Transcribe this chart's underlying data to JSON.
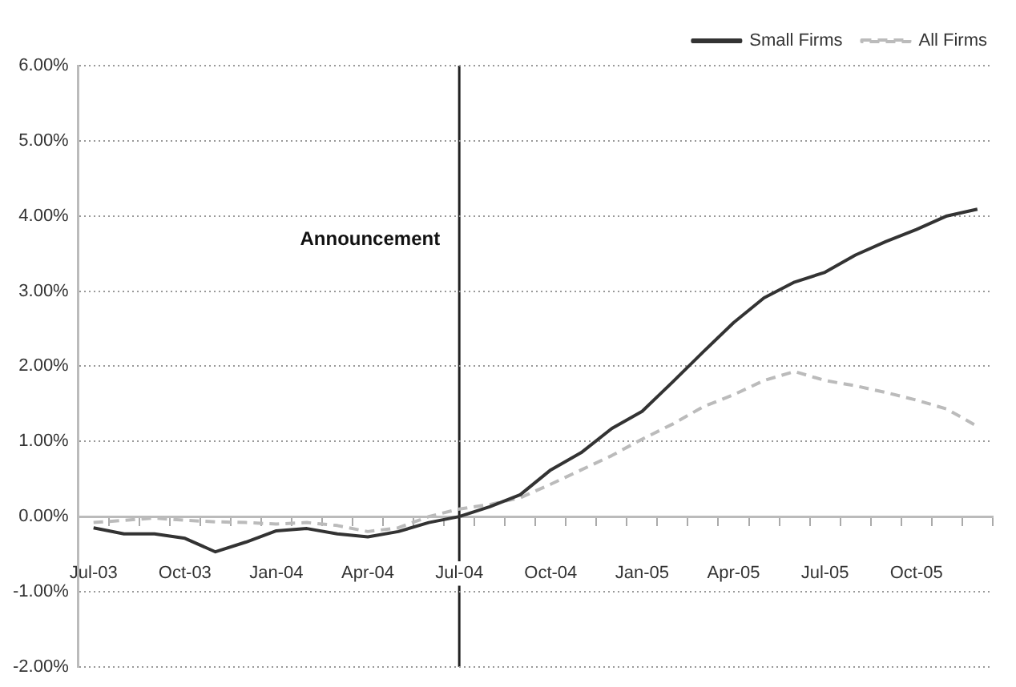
{
  "chart_data": {
    "type": "line",
    "categories": [
      "Jul-03",
      null,
      null,
      "Oct-03",
      null,
      null,
      "Jan-04",
      null,
      null,
      "Apr-04",
      null,
      null,
      "Jul-04",
      null,
      null,
      "Oct-04",
      null,
      null,
      "Jan-05",
      null,
      null,
      "Apr-05",
      null,
      null,
      "Jul-05",
      null,
      null,
      "Oct-05",
      null,
      null
    ],
    "series": [
      {
        "name": "Small Firms",
        "color": "#333333",
        "line_style": "solid",
        "values": [
          -0.15,
          -0.23,
          -0.23,
          -0.29,
          -0.47,
          -0.34,
          -0.19,
          -0.16,
          -0.23,
          -0.27,
          -0.2,
          -0.08,
          0.0,
          0.13,
          0.29,
          0.62,
          0.85,
          1.17,
          1.4,
          1.79,
          2.19,
          2.58,
          2.91,
          3.12,
          3.25,
          3.48,
          3.66,
          3.82,
          4.0,
          4.09
        ]
      },
      {
        "name": "All Firms",
        "color": "#bbbbbb",
        "line_style": "dashed",
        "values": [
          -0.08,
          -0.05,
          -0.02,
          -0.05,
          -0.07,
          -0.08,
          -0.1,
          -0.08,
          -0.12,
          -0.2,
          -0.15,
          0.0,
          0.1,
          0.16,
          0.25,
          0.43,
          0.62,
          0.81,
          1.03,
          1.23,
          1.46,
          1.62,
          1.81,
          1.93,
          1.81,
          1.74,
          1.65,
          1.55,
          1.43,
          1.2
        ]
      }
    ],
    "ylim": [
      -2,
      6
    ],
    "yticks": [
      {
        "value": -2,
        "label": "-2.00%"
      },
      {
        "value": -1,
        "label": "-1.00%"
      },
      {
        "value": 0,
        "label": "0.00%"
      },
      {
        "value": 1,
        "label": "1.00%"
      },
      {
        "value": 2,
        "label": "2.00%"
      },
      {
        "value": 3,
        "label": "3.00%"
      },
      {
        "value": 4,
        "label": "4.00%"
      },
      {
        "value": 5,
        "label": "5.00%"
      },
      {
        "value": 6,
        "label": "6.00%"
      }
    ],
    "ref_lines": [
      {
        "axis": "x",
        "value": "Jul-04",
        "label": "Announcement",
        "color": "#222222"
      }
    ],
    "grid": "y",
    "legend": "top right",
    "marker": "none"
  }
}
